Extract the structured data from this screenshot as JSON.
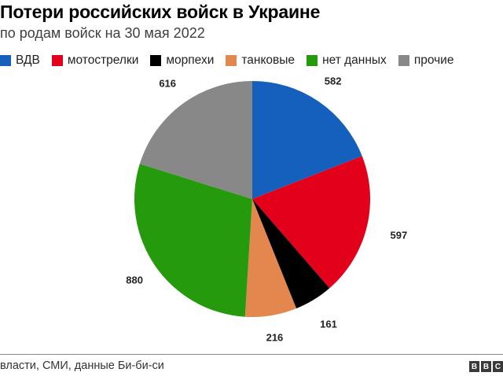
{
  "header": {
    "title": "Потери российских войск в Украине",
    "subtitle": "по родам войск на 30 мая 2022"
  },
  "legend": [
    {
      "label": "ВДВ",
      "color": "#1560bd"
    },
    {
      "label": "мотострелки",
      "color": "#e2001a"
    },
    {
      "label": "морпехи",
      "color": "#000000"
    },
    {
      "label": "танковые",
      "color": "#e4874f"
    },
    {
      "label": "нет данных",
      "color": "#259a0c"
    },
    {
      "label": "прочие",
      "color": "#888888"
    }
  ],
  "footer": {
    "source": "власти, СМИ, данные Би-би-си",
    "logo": [
      "B",
      "B",
      "C"
    ]
  },
  "chart_data": {
    "type": "pie",
    "title": "Потери российских войск в Украине",
    "subtitle": "по родам войск на 30 мая 2022",
    "categories": [
      "ВДВ",
      "мотострелки",
      "морпехи",
      "танковые",
      "нет данных",
      "прочие"
    ],
    "values": [
      582,
      597,
      161,
      216,
      880,
      616
    ],
    "colors": [
      "#1560bd",
      "#e2001a",
      "#000000",
      "#e4874f",
      "#259a0c",
      "#888888"
    ],
    "labels": [
      "582",
      "597",
      "161",
      "216",
      "880",
      "616"
    ],
    "start_angle": "12 o'clock",
    "direction": "clockwise",
    "legend_position": "top"
  }
}
